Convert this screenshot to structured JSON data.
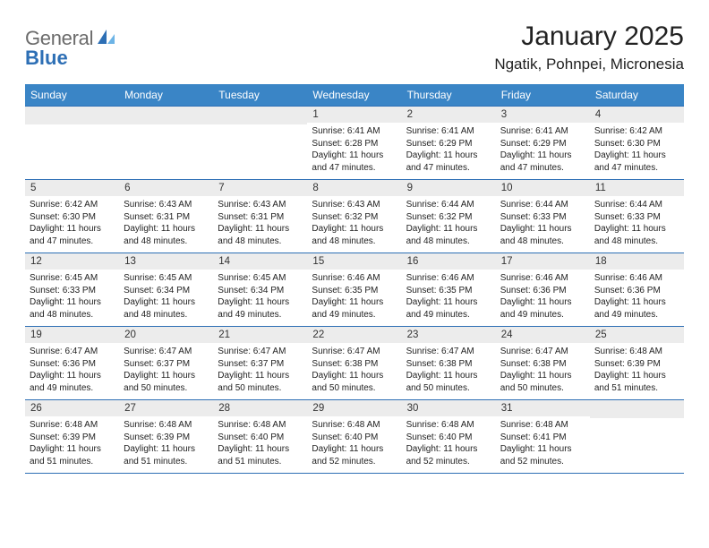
{
  "logo": {
    "text_a": "General",
    "text_b": "Blue"
  },
  "title": "January 2025",
  "location": "Ngatik, Pohnpei, Micronesia",
  "day_headers": [
    "Sunday",
    "Monday",
    "Tuesday",
    "Wednesday",
    "Thursday",
    "Friday",
    "Saturday"
  ],
  "colors": {
    "header_bg": "#3a85c6",
    "header_text": "#ffffff",
    "daynum_bg": "#ececec",
    "border": "#2d6fb5",
    "logo_gray": "#6b6b6b",
    "logo_blue": "#2d6fb5",
    "page_bg": "#ffffff"
  },
  "weeks": [
    [
      null,
      null,
      null,
      {
        "n": "1",
        "sr": "6:41 AM",
        "ss": "6:28 PM",
        "dl": "11 hours and 47 minutes."
      },
      {
        "n": "2",
        "sr": "6:41 AM",
        "ss": "6:29 PM",
        "dl": "11 hours and 47 minutes."
      },
      {
        "n": "3",
        "sr": "6:41 AM",
        "ss": "6:29 PM",
        "dl": "11 hours and 47 minutes."
      },
      {
        "n": "4",
        "sr": "6:42 AM",
        "ss": "6:30 PM",
        "dl": "11 hours and 47 minutes."
      }
    ],
    [
      {
        "n": "5",
        "sr": "6:42 AM",
        "ss": "6:30 PM",
        "dl": "11 hours and 47 minutes."
      },
      {
        "n": "6",
        "sr": "6:43 AM",
        "ss": "6:31 PM",
        "dl": "11 hours and 48 minutes."
      },
      {
        "n": "7",
        "sr": "6:43 AM",
        "ss": "6:31 PM",
        "dl": "11 hours and 48 minutes."
      },
      {
        "n": "8",
        "sr": "6:43 AM",
        "ss": "6:32 PM",
        "dl": "11 hours and 48 minutes."
      },
      {
        "n": "9",
        "sr": "6:44 AM",
        "ss": "6:32 PM",
        "dl": "11 hours and 48 minutes."
      },
      {
        "n": "10",
        "sr": "6:44 AM",
        "ss": "6:33 PM",
        "dl": "11 hours and 48 minutes."
      },
      {
        "n": "11",
        "sr": "6:44 AM",
        "ss": "6:33 PM",
        "dl": "11 hours and 48 minutes."
      }
    ],
    [
      {
        "n": "12",
        "sr": "6:45 AM",
        "ss": "6:33 PM",
        "dl": "11 hours and 48 minutes."
      },
      {
        "n": "13",
        "sr": "6:45 AM",
        "ss": "6:34 PM",
        "dl": "11 hours and 48 minutes."
      },
      {
        "n": "14",
        "sr": "6:45 AM",
        "ss": "6:34 PM",
        "dl": "11 hours and 49 minutes."
      },
      {
        "n": "15",
        "sr": "6:46 AM",
        "ss": "6:35 PM",
        "dl": "11 hours and 49 minutes."
      },
      {
        "n": "16",
        "sr": "6:46 AM",
        "ss": "6:35 PM",
        "dl": "11 hours and 49 minutes."
      },
      {
        "n": "17",
        "sr": "6:46 AM",
        "ss": "6:36 PM",
        "dl": "11 hours and 49 minutes."
      },
      {
        "n": "18",
        "sr": "6:46 AM",
        "ss": "6:36 PM",
        "dl": "11 hours and 49 minutes."
      }
    ],
    [
      {
        "n": "19",
        "sr": "6:47 AM",
        "ss": "6:36 PM",
        "dl": "11 hours and 49 minutes."
      },
      {
        "n": "20",
        "sr": "6:47 AM",
        "ss": "6:37 PM",
        "dl": "11 hours and 50 minutes."
      },
      {
        "n": "21",
        "sr": "6:47 AM",
        "ss": "6:37 PM",
        "dl": "11 hours and 50 minutes."
      },
      {
        "n": "22",
        "sr": "6:47 AM",
        "ss": "6:38 PM",
        "dl": "11 hours and 50 minutes."
      },
      {
        "n": "23",
        "sr": "6:47 AM",
        "ss": "6:38 PM",
        "dl": "11 hours and 50 minutes."
      },
      {
        "n": "24",
        "sr": "6:47 AM",
        "ss": "6:38 PM",
        "dl": "11 hours and 50 minutes."
      },
      {
        "n": "25",
        "sr": "6:48 AM",
        "ss": "6:39 PM",
        "dl": "11 hours and 51 minutes."
      }
    ],
    [
      {
        "n": "26",
        "sr": "6:48 AM",
        "ss": "6:39 PM",
        "dl": "11 hours and 51 minutes."
      },
      {
        "n": "27",
        "sr": "6:48 AM",
        "ss": "6:39 PM",
        "dl": "11 hours and 51 minutes."
      },
      {
        "n": "28",
        "sr": "6:48 AM",
        "ss": "6:40 PM",
        "dl": "11 hours and 51 minutes."
      },
      {
        "n": "29",
        "sr": "6:48 AM",
        "ss": "6:40 PM",
        "dl": "11 hours and 52 minutes."
      },
      {
        "n": "30",
        "sr": "6:48 AM",
        "ss": "6:40 PM",
        "dl": "11 hours and 52 minutes."
      },
      {
        "n": "31",
        "sr": "6:48 AM",
        "ss": "6:41 PM",
        "dl": "11 hours and 52 minutes."
      },
      null
    ]
  ],
  "labels": {
    "sunrise": "Sunrise: ",
    "sunset": "Sunset: ",
    "daylight": "Daylight: "
  }
}
